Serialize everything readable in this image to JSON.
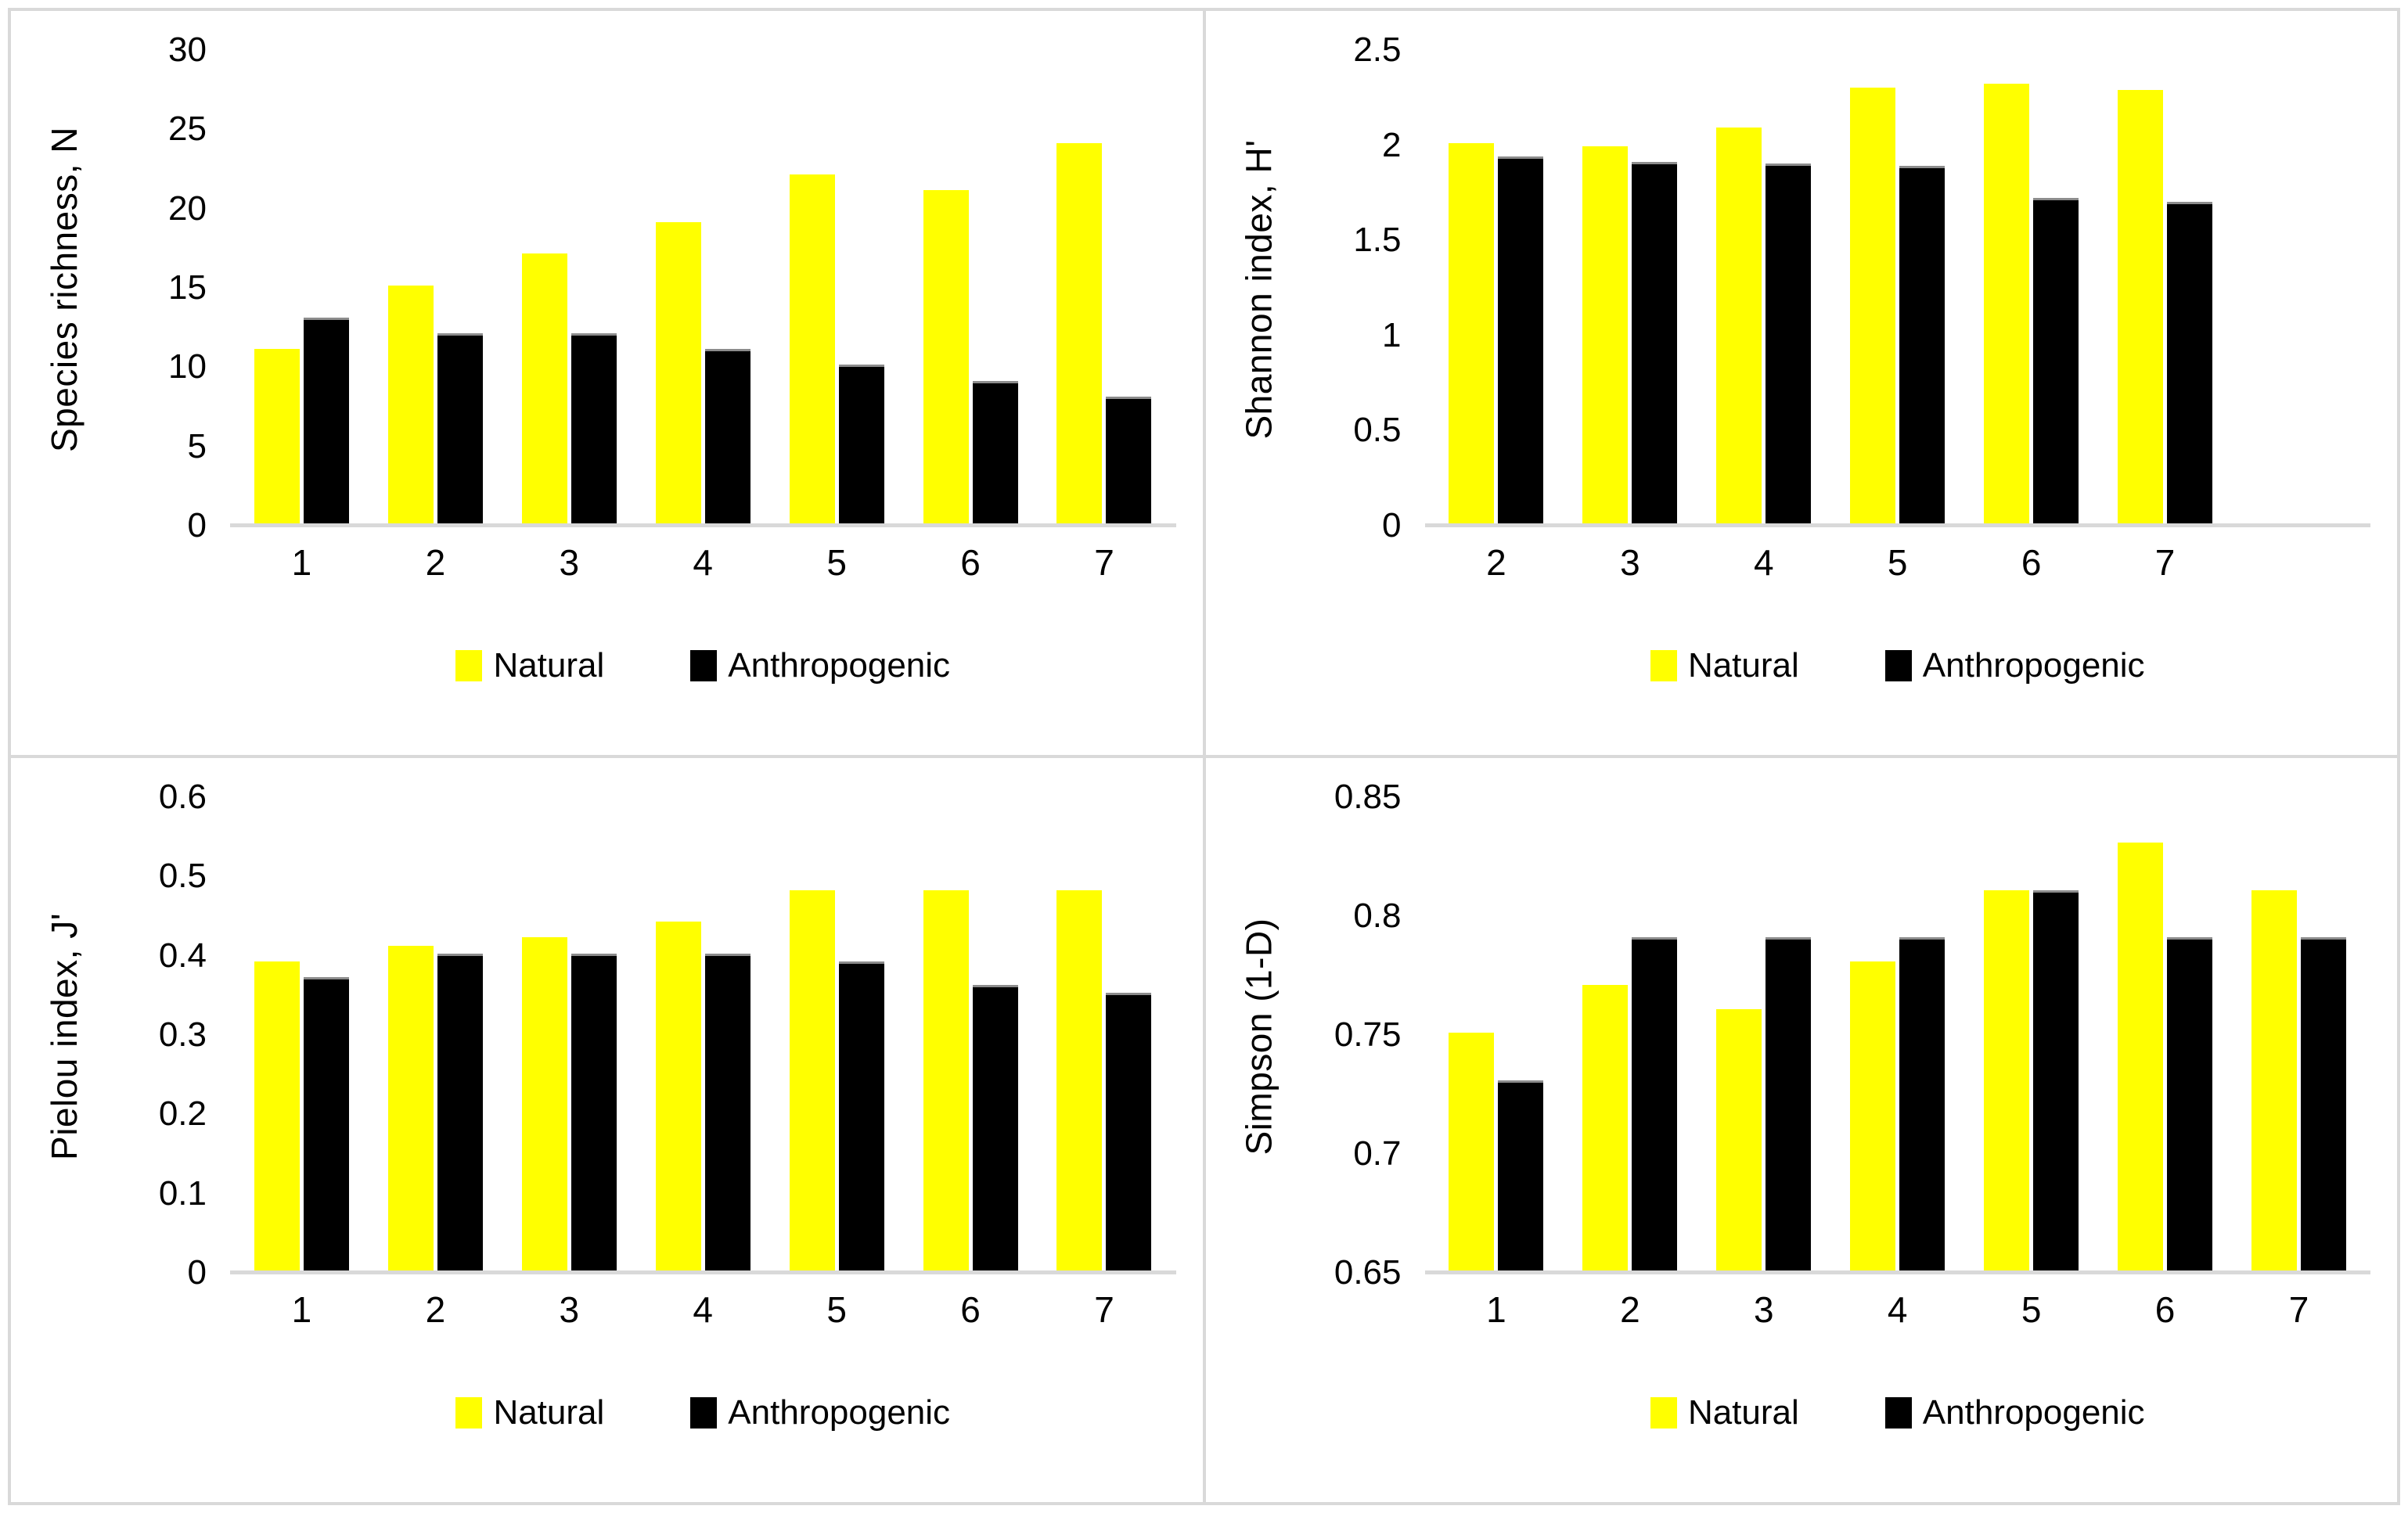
{
  "colors": {
    "natural": "#FFFF00",
    "anthropogenic": "#000000",
    "axis_line": "#D9D9D9",
    "frame": "#D9D9D9",
    "text": "#000000",
    "background": "#FFFFFF",
    "anthropogenic_bar_cap": "#8C8C8C"
  },
  "legend": {
    "natural_label": "Natural",
    "anthropogenic_label": "Anthropogenic"
  },
  "chart_data": [
    {
      "id": "species-richness",
      "type": "bar",
      "title": "",
      "xlabel": "",
      "ylabel": "Species richness, N",
      "ylim": [
        0,
        30
      ],
      "yticks": [
        "0",
        "5",
        "10",
        "15",
        "20",
        "25",
        "30"
      ],
      "grid": false,
      "legend_position": "bottom",
      "categories": [
        "1",
        "2",
        "3",
        "4",
        "5",
        "6",
        "7"
      ],
      "trailing_empty_slots": 0,
      "series": [
        {
          "name": "Natural",
          "color": "#FFFF00",
          "values": [
            11,
            15,
            17,
            19,
            22,
            21,
            24
          ]
        },
        {
          "name": "Anthropogenic",
          "color": "#000000",
          "values": [
            13,
            12,
            12,
            11,
            10,
            9,
            8
          ]
        }
      ]
    },
    {
      "id": "shannon-index",
      "type": "bar",
      "title": "",
      "xlabel": "",
      "ylabel": "Shannon index, H'",
      "ylim": [
        0,
        2.5
      ],
      "yticks": [
        "0",
        "0.5",
        "1",
        "1.5",
        "2",
        "2.5"
      ],
      "grid": false,
      "legend_position": "bottom",
      "categories": [
        "2",
        "3",
        "4",
        "5",
        "6",
        "7"
      ],
      "trailing_empty_slots": 1,
      "series": [
        {
          "name": "Natural",
          "color": "#FFFF00",
          "values": [
            2.0,
            1.98,
            2.08,
            2.29,
            2.31,
            2.28
          ]
        },
        {
          "name": "Anthropogenic",
          "color": "#000000",
          "values": [
            1.93,
            1.9,
            1.89,
            1.88,
            1.71,
            1.69
          ]
        }
      ]
    },
    {
      "id": "pielou-index",
      "type": "bar",
      "title": "",
      "xlabel": "",
      "ylabel": "Pielou index, J'",
      "ylim": [
        0,
        0.6
      ],
      "yticks": [
        "0",
        "0.1",
        "0.2",
        "0.3",
        "0.4",
        "0.5",
        "0.6"
      ],
      "grid": false,
      "legend_position": "bottom",
      "categories": [
        "1",
        "2",
        "3",
        "4",
        "5",
        "6",
        "7"
      ],
      "trailing_empty_slots": 0,
      "series": [
        {
          "name": "Natural",
          "color": "#FFFF00",
          "values": [
            0.39,
            0.41,
            0.42,
            0.44,
            0.48,
            0.48,
            0.48
          ]
        },
        {
          "name": "Anthropogenic",
          "color": "#000000",
          "values": [
            0.37,
            0.4,
            0.4,
            0.4,
            0.39,
            0.36,
            0.35
          ]
        }
      ]
    },
    {
      "id": "simpson",
      "type": "bar",
      "title": "",
      "xlabel": "",
      "ylabel": "Simpson (1-D)",
      "ylim": [
        0.65,
        0.85
      ],
      "yticks": [
        "0.65",
        "0.7",
        "0.75",
        "0.8",
        "0.85"
      ],
      "grid": false,
      "legend_position": "bottom",
      "categories": [
        "1",
        "2",
        "3",
        "4",
        "5",
        "6",
        "7"
      ],
      "trailing_empty_slots": 0,
      "series": [
        {
          "name": "Natural",
          "color": "#FFFF00",
          "values": [
            0.75,
            0.77,
            0.76,
            0.78,
            0.81,
            0.83,
            0.81
          ]
        },
        {
          "name": "Anthropogenic",
          "color": "#000000",
          "values": [
            0.73,
            0.79,
            0.79,
            0.79,
            0.81,
            0.79,
            0.79
          ]
        }
      ]
    }
  ]
}
